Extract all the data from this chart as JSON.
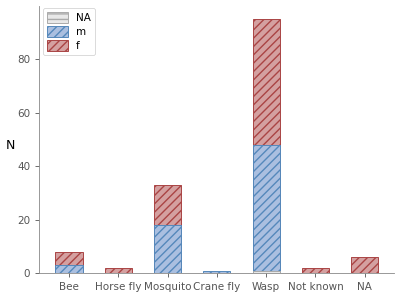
{
  "categories": [
    "Bee",
    "Horse fly",
    "Mosquito",
    "Crane fly",
    "Wasp",
    "Not known",
    "NA"
  ],
  "m_values": [
    3,
    0,
    18,
    1,
    48,
    0,
    0
  ],
  "f_values": [
    8,
    2,
    33,
    0,
    95,
    2,
    6
  ],
  "na_values": [
    0,
    0,
    0,
    0,
    1,
    0,
    0
  ],
  "ylim": [
    0,
    100
  ],
  "yticks": [
    0,
    20,
    40,
    60,
    80
  ],
  "ylabel": "N",
  "color_m_face": "#aabfe0",
  "color_m_edge": "#5588bb",
  "color_f_face": "#d4a0a0",
  "color_f_edge": "#aa4444",
  "color_na_face": "#e8e8e8",
  "color_na_edge": "#aaaaaa",
  "bar_width": 0.55,
  "figsize": [
    4.0,
    2.98
  ],
  "dpi": 100
}
